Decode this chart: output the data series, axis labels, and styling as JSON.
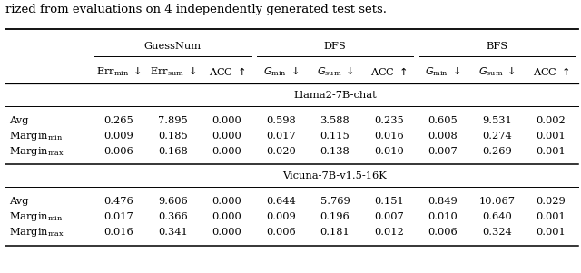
{
  "caption_top": "rized from evaluations on 4 independently generated test sets.",
  "section1_title": "Llama2-7B-chat",
  "section1_rows": [
    [
      "Avg",
      "0.265",
      "7.895",
      "0.000",
      "0.598",
      "3.588",
      "0.235",
      "0.605",
      "9.531",
      "0.002"
    ],
    [
      "Margin_min",
      "0.009",
      "0.185",
      "0.000",
      "0.017",
      "0.115",
      "0.016",
      "0.008",
      "0.274",
      "0.001"
    ],
    [
      "Margin_max",
      "0.006",
      "0.168",
      "0.000",
      "0.020",
      "0.138",
      "0.010",
      "0.007",
      "0.269",
      "0.001"
    ]
  ],
  "section2_title": "Vicuna-7B-v1.5-16K",
  "section2_rows": [
    [
      "Avg",
      "0.476",
      "9.606",
      "0.000",
      "0.644",
      "5.769",
      "0.151",
      "0.849",
      "10.067",
      "0.029"
    ],
    [
      "Margin_min",
      "0.017",
      "0.366",
      "0.000",
      "0.009",
      "0.196",
      "0.007",
      "0.010",
      "0.640",
      "0.001"
    ],
    [
      "Margin_max",
      "0.016",
      "0.341",
      "0.000",
      "0.006",
      "0.181",
      "0.012",
      "0.006",
      "0.324",
      "0.001"
    ]
  ],
  "fig_width": 6.4,
  "fig_height": 3.01,
  "dpi": 100
}
